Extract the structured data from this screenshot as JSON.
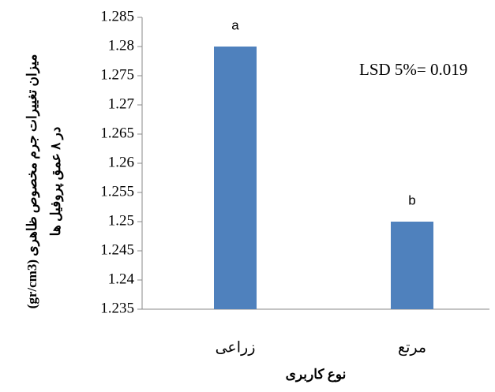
{
  "chart_data": {
    "type": "bar",
    "categories": [
      "زراعی",
      "مرتع"
    ],
    "values": [
      1.28,
      1.25
    ],
    "group_letters": [
      "a",
      "b"
    ],
    "color": "#4f81bd",
    "ylim": [
      1.235,
      1.285
    ],
    "yticks": [
      1.235,
      1.24,
      1.245,
      1.25,
      1.255,
      1.26,
      1.265,
      1.27,
      1.275,
      1.28,
      1.285
    ],
    "annotation": "LSD 5%=  0.019",
    "xlabel": "نوع کاربری",
    "ylabel": [
      "میزان تغییرات جرم مخصوص ظاهری (gr/cm3)",
      "در ۸ عمق پروفیل ها"
    ]
  }
}
